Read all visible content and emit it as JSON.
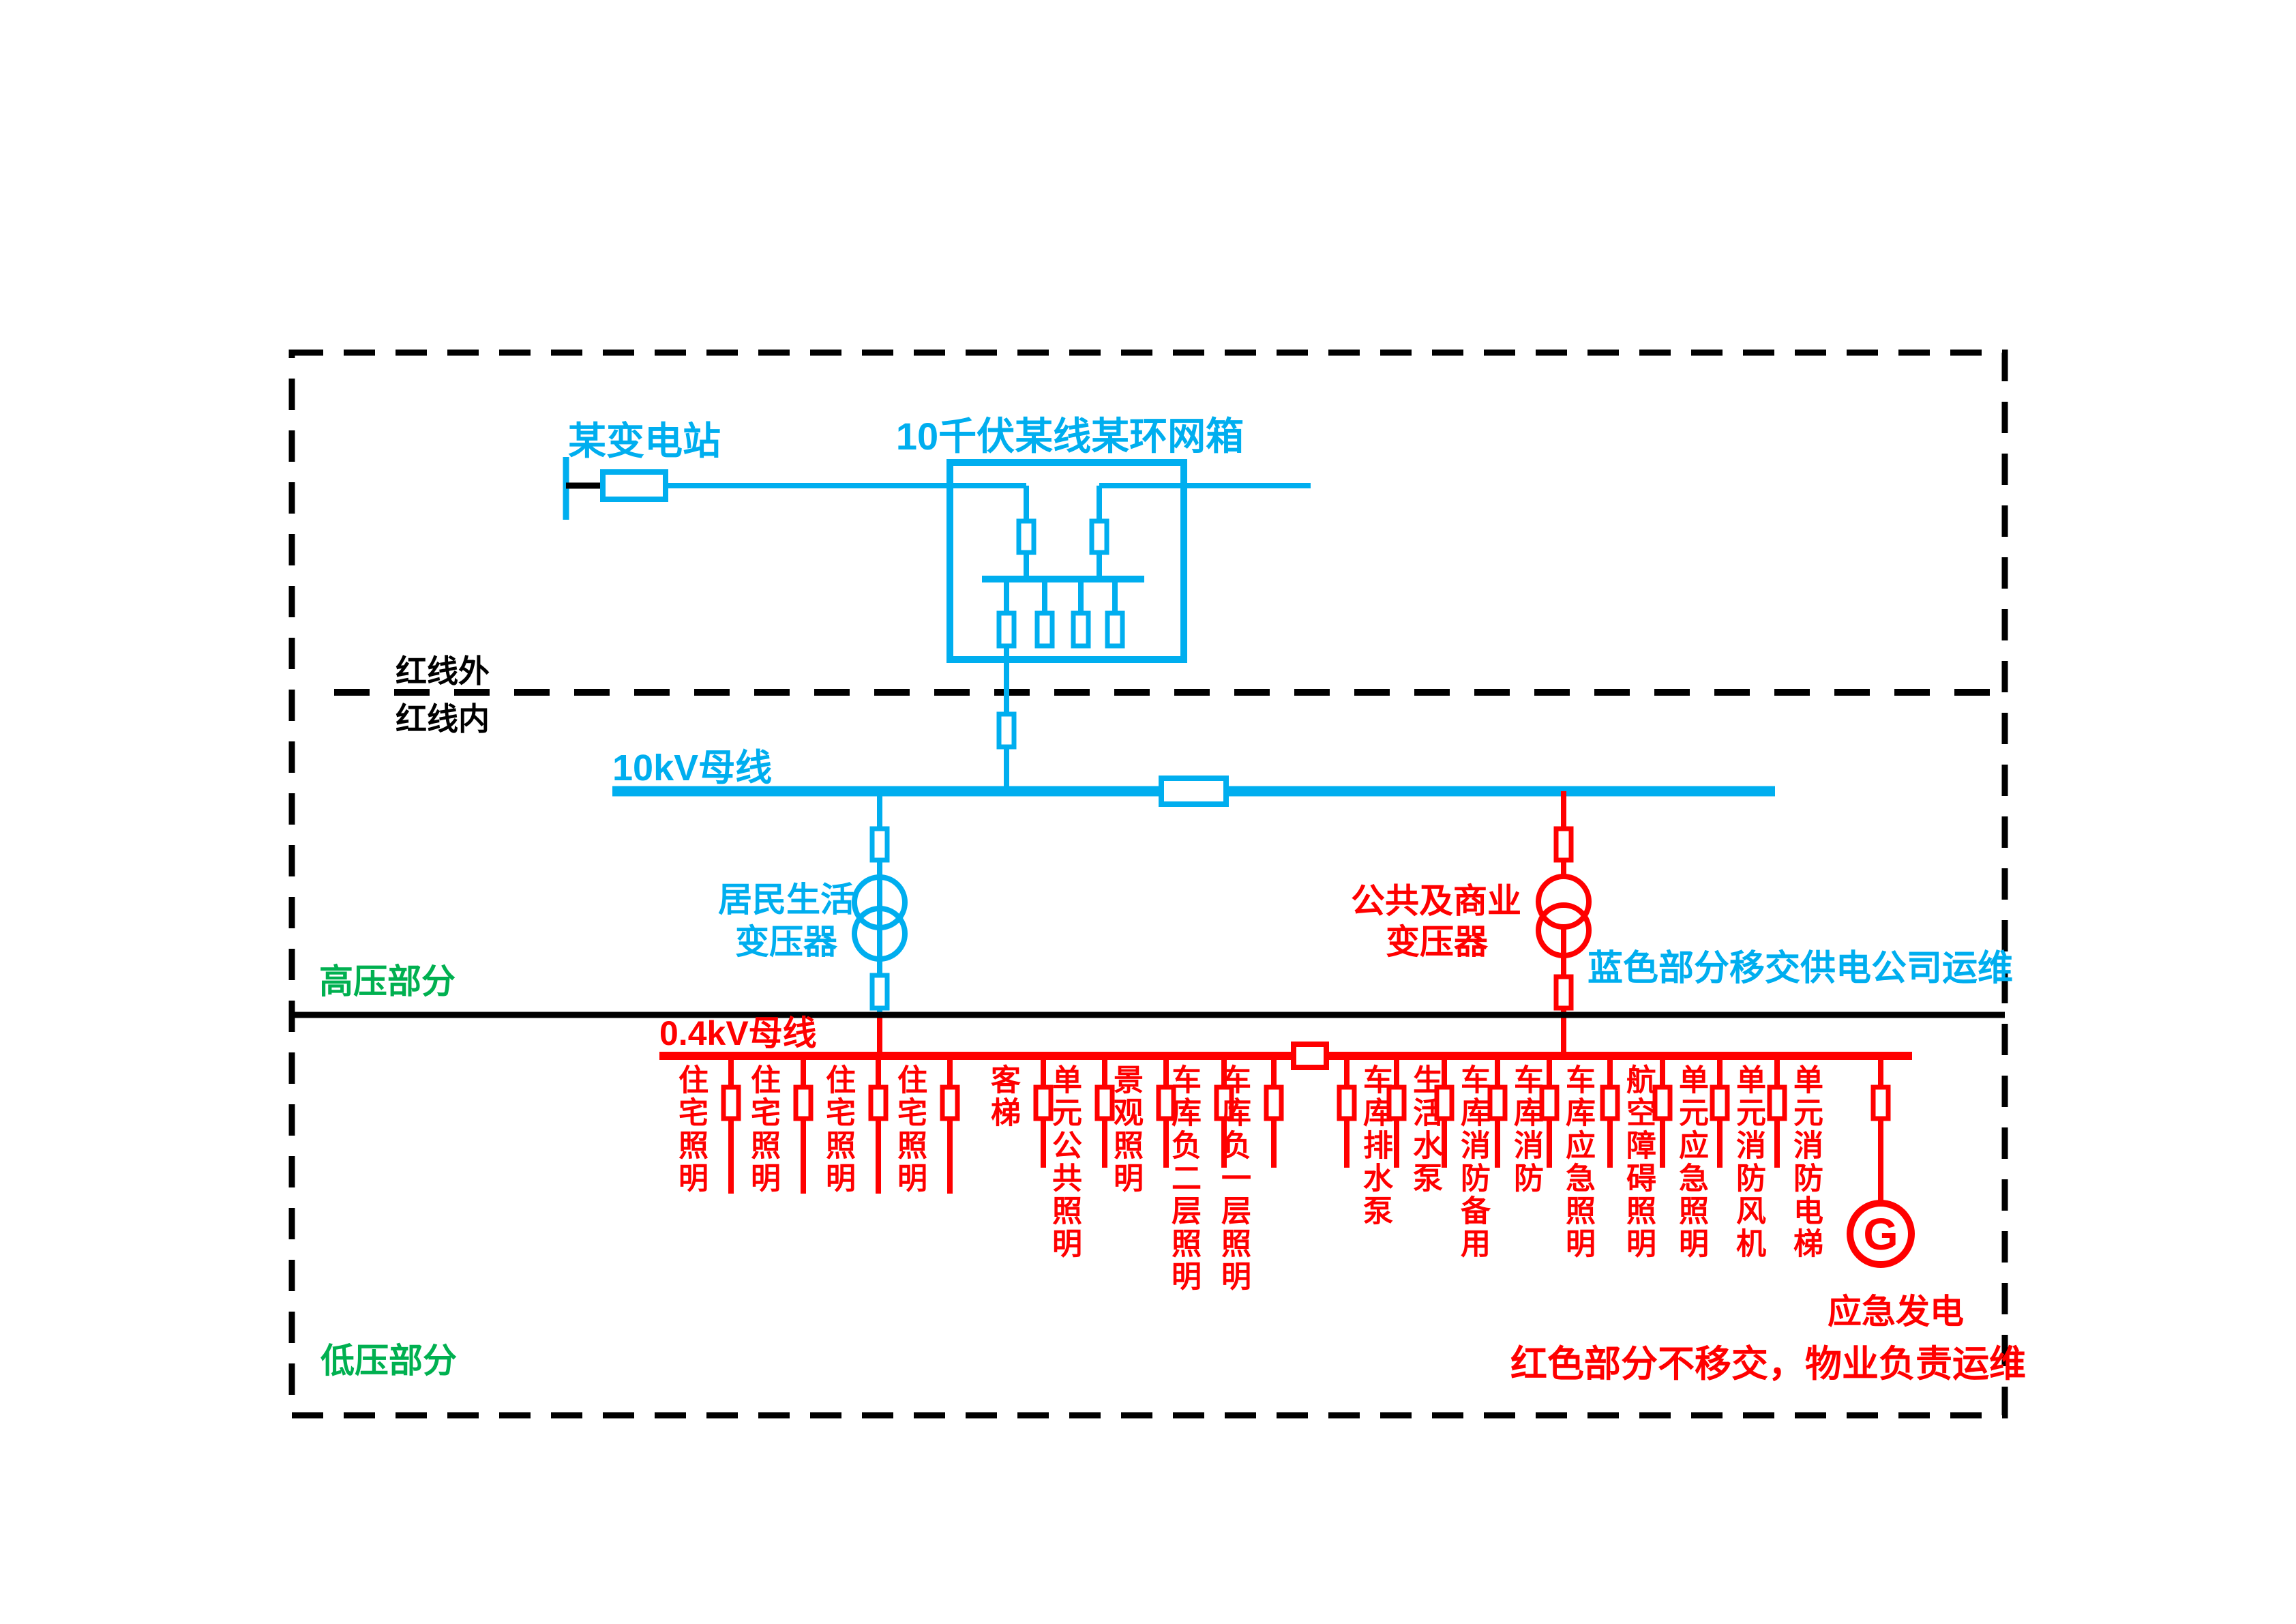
{
  "diagram": {
    "substation_label": "某变电站",
    "ring_box_label": "10千伏某线某环网箱",
    "boundary_outside_label": "红线外",
    "boundary_inside_label": "红线内",
    "bus_10kv_label": "10kV母线",
    "bus_04kv_label": "0.4kV母线",
    "hv_section_label": "高压部分",
    "lv_section_label": "低压部分",
    "transformer_left": {
      "line1": "居民生活",
      "line2": "变压器"
    },
    "transformer_right": {
      "line1": "公共及商业",
      "line2": "变压器"
    },
    "blue_note": "蓝色部分移交供电公司运维",
    "red_note": "红色部分不移交，物业负责运维",
    "generator": {
      "symbol": "G",
      "label": "应急发电"
    },
    "feeder_groups": [
      {
        "id": "residential-section",
        "feeders": [
          "住宅照明",
          "住宅照明",
          "住宅照明",
          "住宅照明"
        ]
      },
      {
        "id": "public-section-a",
        "feeders": [
          "客梯",
          "单元公共照明",
          "景观照明",
          "车库负二层照明",
          "车库负一层照明"
        ]
      },
      {
        "id": "public-section-b",
        "feeders": [
          "车库排水泵",
          "生活水泵",
          "车库消防备用",
          "车库消防",
          "车库应急照明",
          "航空障碍照明",
          "单元应急照明",
          "单元消防风机",
          "单元消防电梯"
        ]
      }
    ],
    "colors": {
      "blue": "#00AEEF",
      "red": "#FF0000",
      "green": "#00B050",
      "black": "#000000"
    }
  }
}
